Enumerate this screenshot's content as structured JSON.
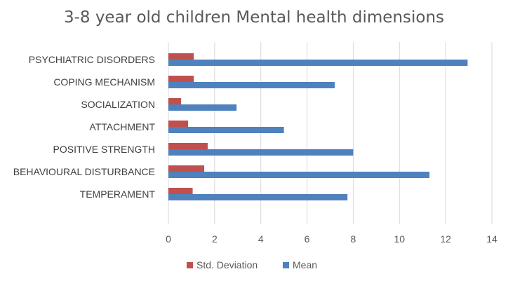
{
  "chart_data": {
    "type": "bar",
    "orientation": "horizontal",
    "title": "3-8 year old children Mental health dimensions",
    "xlabel": "",
    "ylabel": "",
    "xlim": [
      0,
      14
    ],
    "xticks": [
      0,
      2,
      4,
      6,
      8,
      10,
      12,
      14
    ],
    "grid": true,
    "legend": "bottom",
    "categories": [
      "PSYCHIATRIC DISORDERS",
      "COPING MECHANISM",
      "SOCIALIZATION",
      "ATTACHMENT",
      "POSITIVE STRENGTH",
      "BEHAVIOURAL DISTURBANCE",
      "TEMPERAMENT"
    ],
    "series": [
      {
        "name": "Std. Deviation",
        "color": "#c0504d",
        "values": [
          1.1,
          1.1,
          0.55,
          0.85,
          1.7,
          1.55,
          1.05
        ]
      },
      {
        "name": "Mean",
        "color": "#4f81bd",
        "values": [
          12.95,
          7.2,
          2.95,
          5.0,
          8.0,
          11.3,
          7.75
        ]
      }
    ]
  }
}
